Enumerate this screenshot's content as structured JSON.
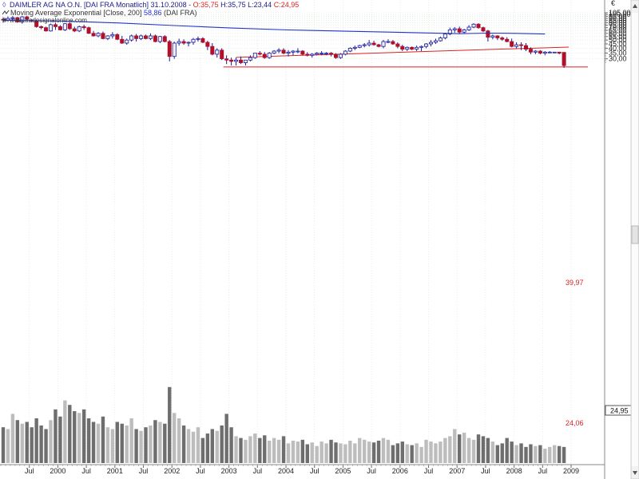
{
  "header": {
    "icon_symbol": "◊",
    "line1_a": "DAIMLER AG NA O.N.  [DAI FRA  Monatlich] 31.10.2008 - ",
    "line1_o": "O:35,75",
    "line1_hl": " H:35,75 L:23,44 ",
    "line1_c": "C:24,95",
    "line2_a": "Moving Average Exponential [Close, 200] ",
    "line2_val": "58,86",
    "line2_b": " (DAI FRA)",
    "line3": "www.tradesignalonline.com",
    "currency": "€",
    "last_price_tag": "24,95"
  },
  "colors": {
    "bull": "#f0f0f0",
    "bear": "#b0102a",
    "wick": "#1a1aa0",
    "ema": "#2233cc",
    "trendline": "#dd2222",
    "label_red": "#dd2222",
    "grid": "#d8e4d8",
    "vol_dark": "#6e6e6e",
    "vol_light": "#bdbdbd"
  },
  "chart_data": {
    "type": "candlestick",
    "title": "DAIMLER AG NA O.N.  [DAI FRA  Monatlich]",
    "y_scale": "log",
    "ylim": [
      21,
      105
    ],
    "y_ticks": [
      "105,00",
      "100,00",
      "95,00",
      "90,00",
      "85,00",
      "80,00",
      "75,00",
      "70,00",
      "65,00",
      "60,00",
      "55,00",
      "50,00",
      "45,00",
      "40,00",
      "35,00",
      "30,00"
    ],
    "x_ticks": [
      "Jul",
      "2000",
      "Jul",
      "2001",
      "Jul",
      "2002",
      "Jul",
      "2003",
      "Jul",
      "2004",
      "Jul",
      "2005",
      "Jul",
      "2006",
      "Jul",
      "2007",
      "Jul",
      "2008",
      "Jul",
      "2009"
    ],
    "x_tick_idx": [
      6,
      12,
      18,
      24,
      30,
      36,
      42,
      48,
      54,
      60,
      66,
      72,
      78,
      84,
      90,
      96,
      102,
      108,
      114,
      120
    ],
    "n_months": 119,
    "ohlc": [
      [
        88,
        93,
        80,
        86
      ],
      [
        86,
        95,
        82,
        90
      ],
      [
        90,
        96,
        84,
        92
      ],
      [
        92,
        94,
        80,
        82
      ],
      [
        82,
        96,
        78,
        94
      ],
      [
        94,
        97,
        85,
        88
      ],
      [
        86,
        88,
        82,
        84
      ],
      [
        84,
        87,
        70,
        72
      ],
      [
        72,
        74,
        67,
        70
      ],
      [
        70,
        72,
        63,
        64
      ],
      [
        64,
        78,
        63,
        76
      ],
      [
        76,
        80,
        66,
        72
      ],
      [
        72,
        75,
        65,
        66
      ],
      [
        66,
        79,
        64,
        78
      ],
      [
        78,
        81,
        66,
        68
      ],
      [
        68,
        72,
        62,
        64
      ],
      [
        64,
        74,
        62,
        72
      ],
      [
        72,
        76,
        66,
        70
      ],
      [
        70,
        72,
        59,
        60
      ],
      [
        60,
        64,
        55,
        56
      ],
      [
        56,
        62,
        54,
        60
      ],
      [
        60,
        63,
        51,
        52
      ],
      [
        52,
        57,
        50,
        56
      ],
      [
        56,
        62,
        52,
        58
      ],
      [
        58,
        60,
        50,
        51
      ],
      [
        51,
        56,
        45,
        46
      ],
      [
        46,
        52,
        44,
        50
      ],
      [
        50,
        58,
        48,
        56
      ],
      [
        56,
        59,
        48,
        52
      ],
      [
        52,
        58,
        50,
        56
      ],
      [
        56,
        58,
        51,
        52
      ],
      [
        52,
        60,
        50,
        56
      ],
      [
        56,
        58,
        47,
        48
      ],
      [
        48,
        56,
        46,
        55
      ],
      [
        55,
        57,
        47,
        48
      ],
      [
        48,
        50,
        28,
        32
      ],
      [
        32,
        48,
        30,
        46
      ],
      [
        46,
        52,
        43,
        48
      ],
      [
        48,
        51,
        44,
        46
      ],
      [
        46,
        48,
        42,
        47
      ],
      [
        47,
        53,
        44,
        51
      ],
      [
        51,
        55,
        48,
        52
      ],
      [
        52,
        54,
        46,
        47
      ],
      [
        47,
        49,
        38,
        42
      ],
      [
        42,
        46,
        33,
        34
      ],
      [
        34,
        40,
        31,
        38
      ],
      [
        38,
        40,
        29,
        30
      ],
      [
        30,
        33,
        26,
        29
      ],
      [
        29,
        31,
        25,
        28
      ],
      [
        28,
        31,
        25,
        29
      ],
      [
        29,
        32,
        26,
        27
      ],
      [
        27,
        29,
        25,
        29
      ],
      [
        29,
        33,
        28,
        31
      ],
      [
        31,
        35,
        30,
        35
      ],
      [
        35,
        37,
        33,
        34
      ],
      [
        34,
        36,
        30,
        31
      ],
      [
        31,
        36,
        30,
        35
      ],
      [
        35,
        38,
        34,
        37
      ],
      [
        37,
        40,
        35,
        38
      ],
      [
        38,
        40,
        34,
        35
      ],
      [
        35,
        38,
        32,
        36
      ],
      [
        36,
        38,
        33,
        37
      ],
      [
        37,
        40,
        35,
        37
      ],
      [
        37,
        38,
        33,
        34
      ],
      [
        34,
        36,
        32,
        33
      ],
      [
        33,
        35,
        31,
        34
      ],
      [
        34,
        36,
        33,
        35
      ],
      [
        35,
        37,
        33,
        35
      ],
      [
        35,
        36,
        33,
        35
      ],
      [
        35,
        36,
        32,
        34
      ],
      [
        34,
        35,
        30,
        31
      ],
      [
        31,
        35,
        30,
        34
      ],
      [
        34,
        38,
        33,
        37
      ],
      [
        37,
        41,
        36,
        40
      ],
      [
        40,
        43,
        38,
        41
      ],
      [
        41,
        44,
        40,
        43
      ],
      [
        43,
        46,
        41,
        44
      ],
      [
        44,
        50,
        42,
        46
      ],
      [
        46,
        49,
        43,
        44
      ],
      [
        44,
        45,
        41,
        42
      ],
      [
        42,
        50,
        40,
        48
      ],
      [
        48,
        51,
        46,
        48
      ],
      [
        48,
        50,
        44,
        45
      ],
      [
        45,
        47,
        40,
        42
      ],
      [
        42,
        44,
        37,
        39
      ],
      [
        39,
        42,
        37,
        41
      ],
      [
        41,
        42,
        38,
        39
      ],
      [
        39,
        43,
        37,
        41
      ],
      [
        41,
        43,
        37,
        42
      ],
      [
        42,
        46,
        40,
        45
      ],
      [
        45,
        50,
        42,
        47
      ],
      [
        47,
        52,
        45,
        49
      ],
      [
        49,
        55,
        48,
        53
      ],
      [
        53,
        61,
        51,
        59
      ],
      [
        59,
        70,
        57,
        66
      ],
      [
        66,
        71,
        61,
        68
      ],
      [
        68,
        72,
        59,
        62
      ],
      [
        62,
        68,
        60,
        66
      ],
      [
        66,
        75,
        64,
        71
      ],
      [
        71,
        79,
        69,
        77
      ],
      [
        77,
        79,
        68,
        70
      ],
      [
        70,
        72,
        62,
        64
      ],
      [
        64,
        66,
        48,
        54
      ],
      [
        54,
        58,
        51,
        56
      ],
      [
        56,
        57,
        50,
        53
      ],
      [
        53,
        55,
        49,
        51
      ],
      [
        51,
        54,
        47,
        48
      ],
      [
        48,
        52,
        41,
        42
      ],
      [
        42,
        47,
        40,
        44
      ],
      [
        44,
        47,
        38,
        43
      ],
      [
        43,
        46,
        37,
        39
      ],
      [
        39,
        41,
        34,
        36
      ],
      [
        36,
        38,
        34,
        37
      ],
      [
        37,
        38,
        34,
        35
      ],
      [
        35,
        37,
        33,
        36
      ],
      [
        36,
        37,
        35,
        36
      ],
      [
        36,
        36,
        35,
        36
      ],
      [
        36,
        36,
        34,
        35
      ],
      [
        35.75,
        35.75,
        23.44,
        24.95
      ]
    ],
    "ema200": [
      [
        0,
        85.8
      ],
      [
        12,
        83.9
      ],
      [
        24,
        79.7
      ],
      [
        36,
        74.2
      ],
      [
        48,
        69.3
      ],
      [
        60,
        65.8
      ],
      [
        72,
        63.6
      ],
      [
        84,
        61.6
      ],
      [
        96,
        59.4
      ],
      [
        102,
        60.4
      ],
      [
        108,
        59.9
      ],
      [
        114,
        58.86
      ]
    ],
    "volume": [
      40,
      38,
      55,
      48,
      44,
      46,
      40,
      50,
      42,
      38,
      48,
      60,
      52,
      70,
      65,
      58,
      56,
      60,
      50,
      46,
      44,
      52,
      40,
      38,
      46,
      44,
      42,
      50,
      38,
      36,
      40,
      42,
      48,
      46,
      44,
      85,
      56,
      50,
      42,
      38,
      35,
      40,
      28,
      33,
      38,
      36,
      42,
      55,
      40,
      30,
      28,
      26,
      30,
      33,
      28,
      31,
      25,
      28,
      26,
      30,
      22,
      25,
      24,
      26,
      21,
      23,
      19,
      24,
      22,
      26,
      23,
      22,
      21,
      25,
      22,
      28,
      26,
      24,
      23,
      25,
      28,
      26,
      20,
      22,
      24,
      21,
      20,
      22,
      18,
      26,
      24,
      22,
      24,
      28,
      30,
      38,
      32,
      34,
      28,
      26,
      32,
      30,
      28,
      24,
      20,
      22,
      28,
      24,
      20,
      22,
      18,
      21,
      19,
      20,
      16,
      18,
      20,
      19,
      18
    ],
    "trendline": {
      "from": [
        47,
        24.06
      ],
      "to": [
        119,
        41.3
      ]
    },
    "support_level": 24.06,
    "annotations": {
      "trend_value": "39,97",
      "support_value": "24,06"
    }
  }
}
